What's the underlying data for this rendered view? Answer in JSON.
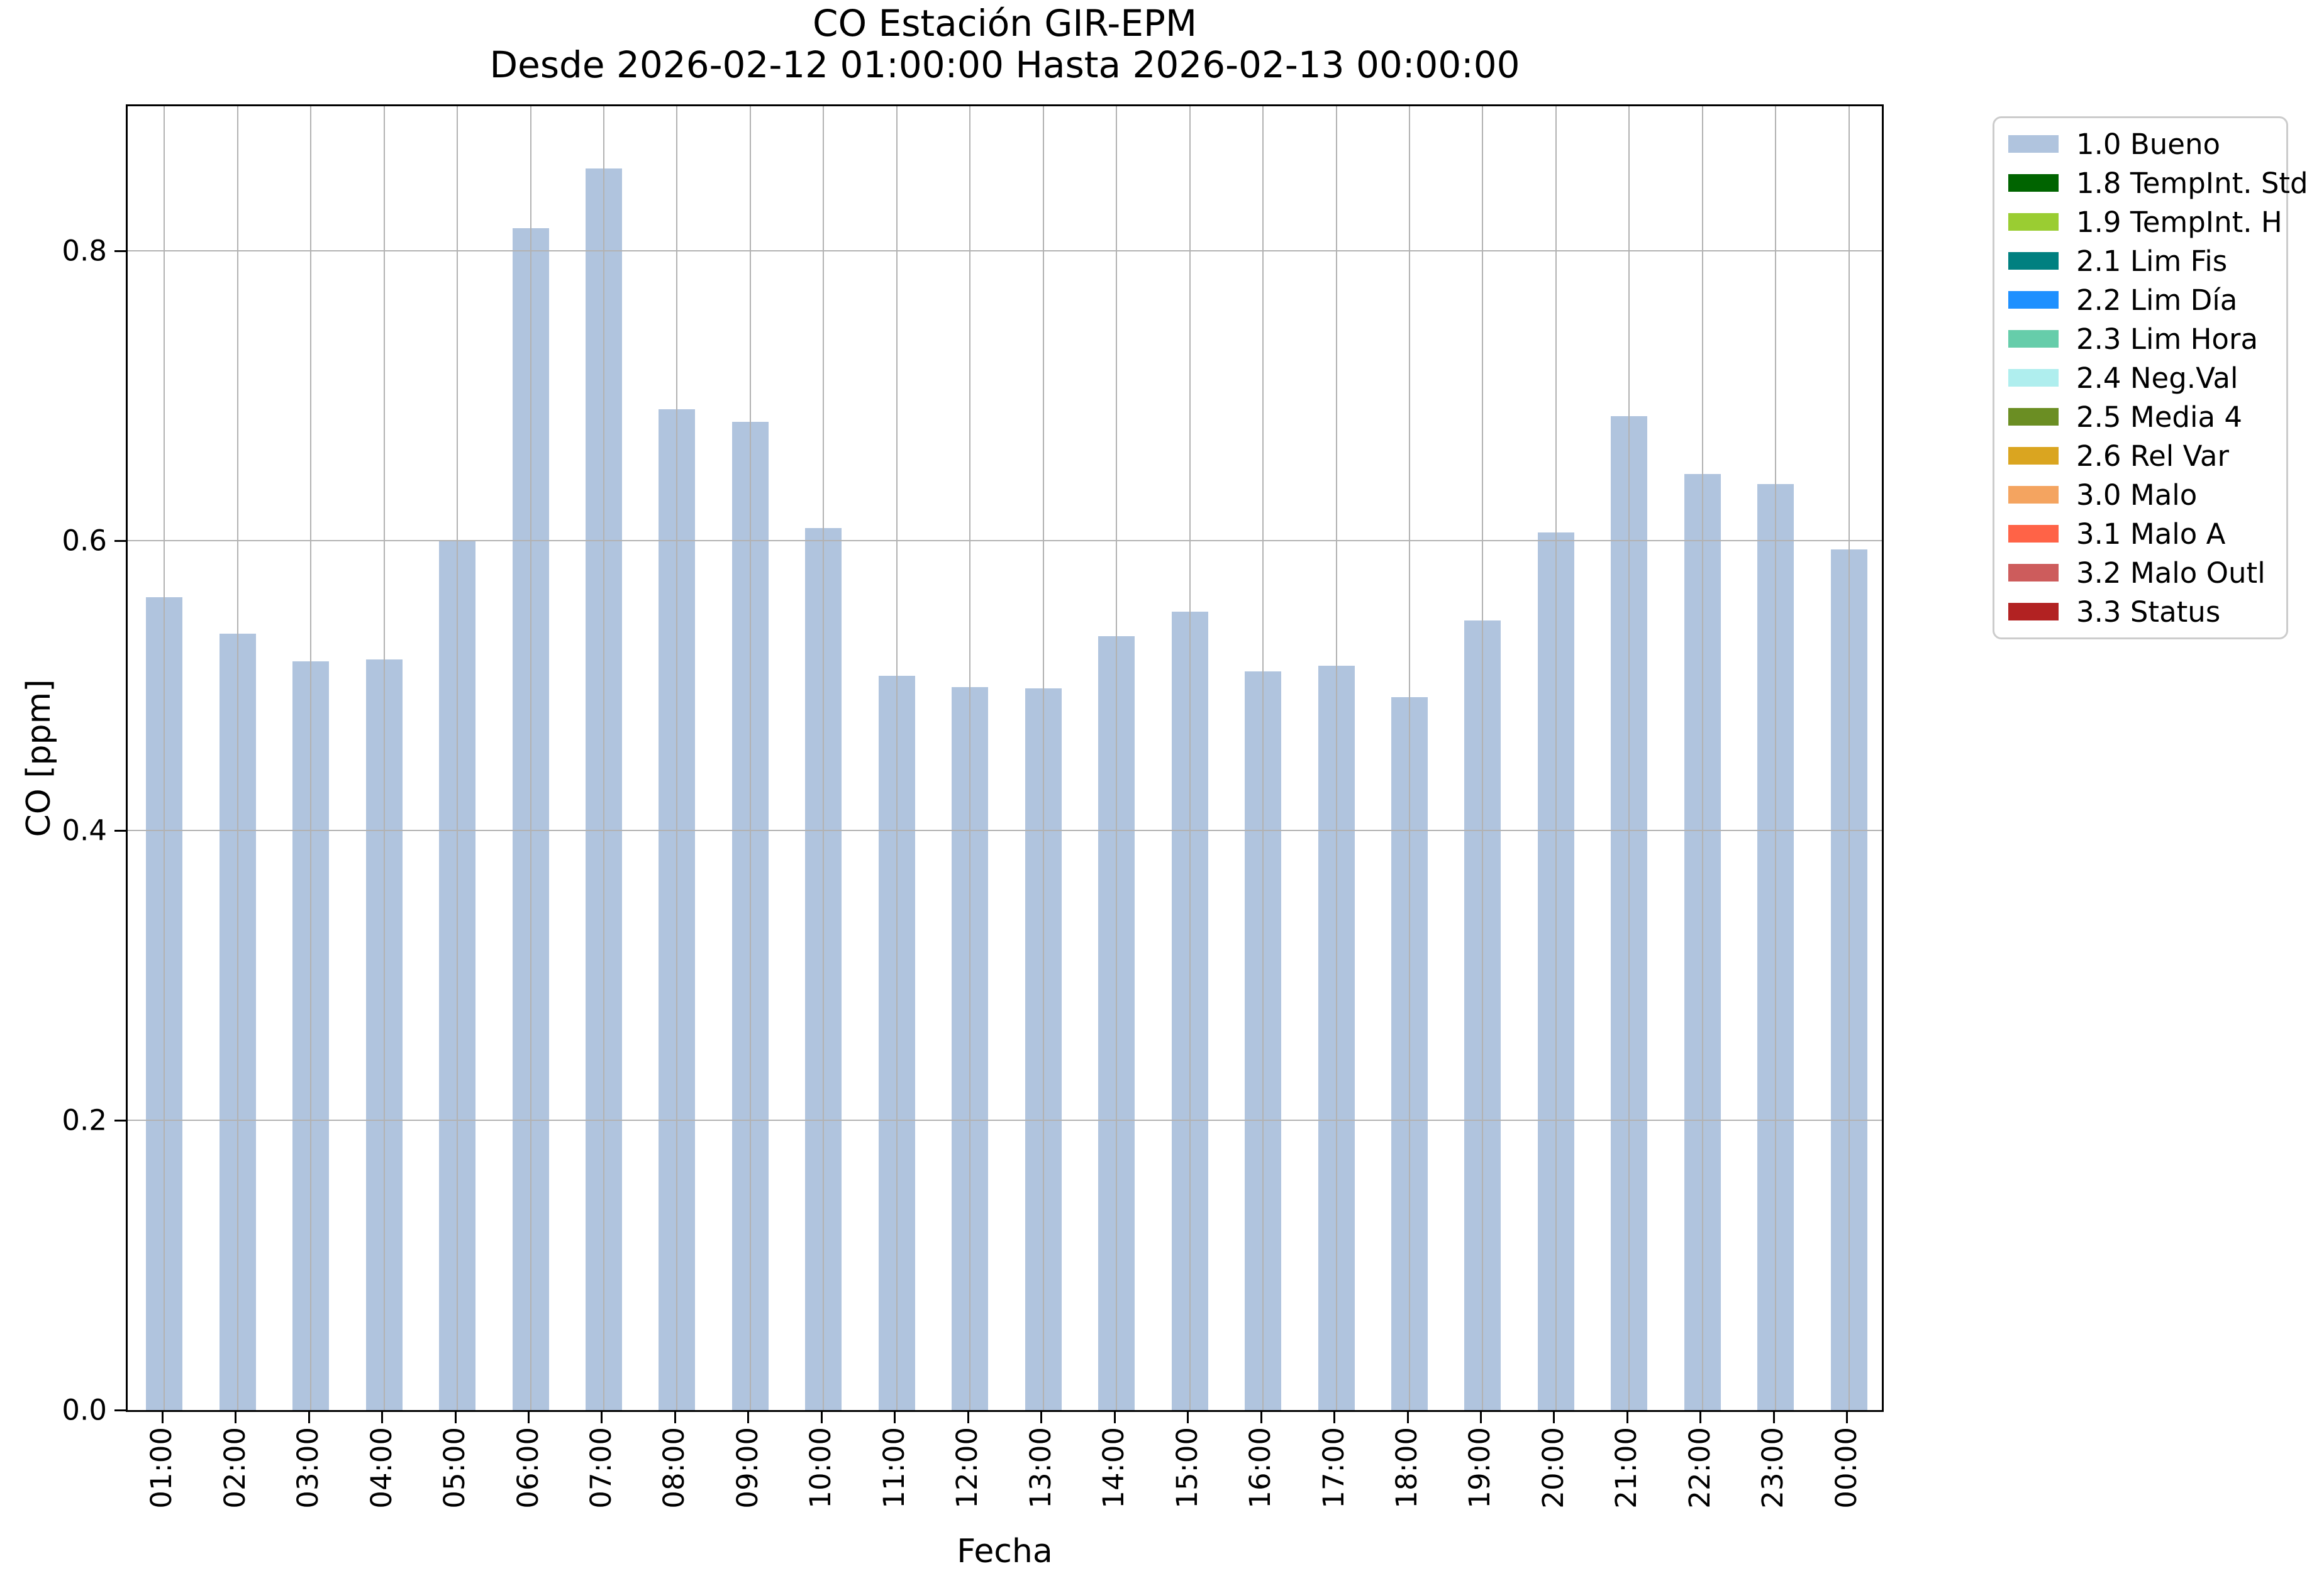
{
  "titles": {
    "line1": "CO Estación GIR-EPM",
    "line2": "Desde 2026-02-12 01:00:00 Hasta 2026-02-13 00:00:00"
  },
  "axes": {
    "ylabel": "CO [ppm]",
    "xlabel": "Fecha",
    "ytick_labels": [
      "0.0",
      "0.2",
      "0.4",
      "0.6",
      "0.8"
    ],
    "grid_color": "#b2b2b2",
    "spine_color": "#000000"
  },
  "chart_data": {
    "type": "bar",
    "title": "CO Estación GIR-EPM",
    "subtitle": "Desde 2026-02-12 01:00:00 Hasta 2026-02-13 00:00:00",
    "xlabel": "Fecha",
    "ylabel": "CO [ppm]",
    "categories": [
      "01:00",
      "02:00",
      "03:00",
      "04:00",
      "05:00",
      "06:00",
      "07:00",
      "08:00",
      "09:00",
      "10:00",
      "11:00",
      "12:00",
      "13:00",
      "14:00",
      "15:00",
      "16:00",
      "17:00",
      "18:00",
      "19:00",
      "20:00",
      "21:00",
      "22:00",
      "23:00",
      "00:00"
    ],
    "values": [
      0.561,
      0.536,
      0.517,
      0.518,
      0.6,
      0.816,
      0.857,
      0.691,
      0.682,
      0.609,
      0.507,
      0.499,
      0.498,
      0.534,
      0.551,
      0.51,
      0.514,
      0.492,
      0.545,
      0.606,
      0.686,
      0.646,
      0.639,
      0.594
    ],
    "series_name": "1.0 Bueno",
    "bar_color": "#b0c4de",
    "ylim": [
      0,
      0.9
    ],
    "yticks": [
      0.0,
      0.2,
      0.4,
      0.6,
      0.8
    ],
    "grid": true,
    "legend_position": "outside-right"
  },
  "legend": {
    "items": [
      {
        "label": "1.0 Bueno",
        "color": "#b0c4de"
      },
      {
        "label": "1.8 TempInt. Std",
        "color": "#006400"
      },
      {
        "label": "1.9 TempInt. H",
        "color": "#9acd32"
      },
      {
        "label": "2.1 Lim Fis",
        "color": "#008080"
      },
      {
        "label": "2.2 Lim Día",
        "color": "#1e90ff"
      },
      {
        "label": "2.3 Lim Hora",
        "color": "#66cdaa"
      },
      {
        "label": "2.4 Neg.Val",
        "color": "#afeeee"
      },
      {
        "label": "2.5 Media 4",
        "color": "#6b8e23"
      },
      {
        "label": "2.6 Rel Var",
        "color": "#daa520"
      },
      {
        "label": "3.0 Malo",
        "color": "#f4a460"
      },
      {
        "label": "3.1 Malo A",
        "color": "#ff6347"
      },
      {
        "label": "3.2 Malo Outl",
        "color": "#cd5c5c"
      },
      {
        "label": "3.3 Status",
        "color": "#b22222"
      }
    ]
  }
}
